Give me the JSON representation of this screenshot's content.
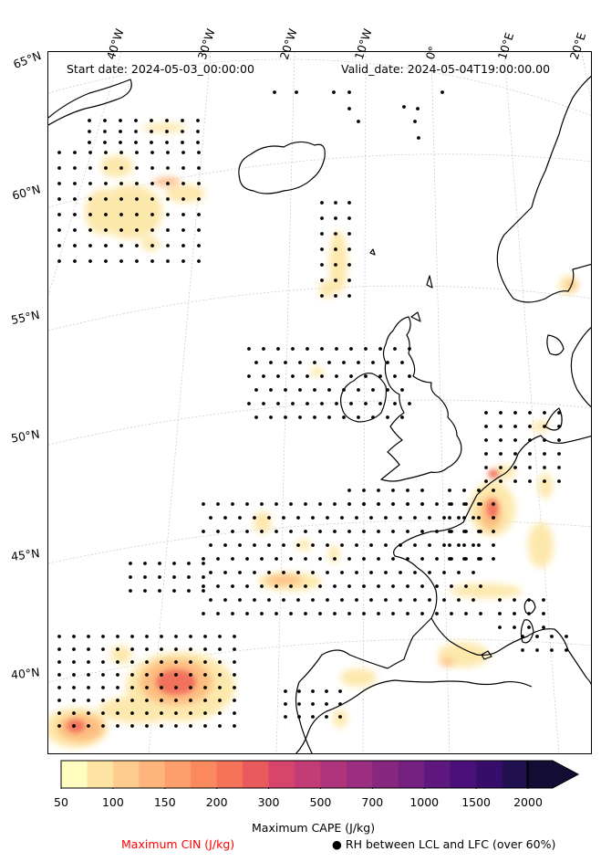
{
  "header": {
    "start_date": "Start date: 2024-05-03_00:00:00",
    "valid_date": "Valid_date: 2024-05-04T19:00:00.00"
  },
  "longitude_labels": [
    "40°W",
    "30°W",
    "20°W",
    "10°W",
    "0°",
    "10°E",
    "20°E"
  ],
  "latitude_labels": [
    "65°N",
    "60°N",
    "55°N",
    "50°N",
    "45°N",
    "40°N"
  ],
  "colorbar": {
    "title": "Maximum CAPE (J/kg)",
    "tick_labels": [
      "50",
      "100",
      "150",
      "200",
      "300",
      "500",
      "700",
      "1000",
      "1500",
      "2000"
    ],
    "levels": [
      50,
      75,
      100,
      125,
      150,
      175,
      200,
      250,
      300,
      400,
      500,
      600,
      700,
      850,
      1000,
      1250,
      1500,
      1750,
      2000,
      2500
    ],
    "colors": [
      "#fefdbf",
      "#fde4a5",
      "#fecc8f",
      "#feb47b",
      "#fd9f6c",
      "#fa8a5e",
      "#f57158",
      "#e85a5c",
      "#d8456c",
      "#c43c75",
      "#b0347b",
      "#9c2e7f",
      "#882780",
      "#732080",
      "#5f187f",
      "#4a1079",
      "#360d6b",
      "#221150",
      "#130d35"
    ]
  },
  "legend": {
    "cin_label": "Maximum CIN (J/kg)",
    "cin_color": "#ff0000",
    "rh_label": "● RH between LCL and LFC (over 60%)"
  }
}
